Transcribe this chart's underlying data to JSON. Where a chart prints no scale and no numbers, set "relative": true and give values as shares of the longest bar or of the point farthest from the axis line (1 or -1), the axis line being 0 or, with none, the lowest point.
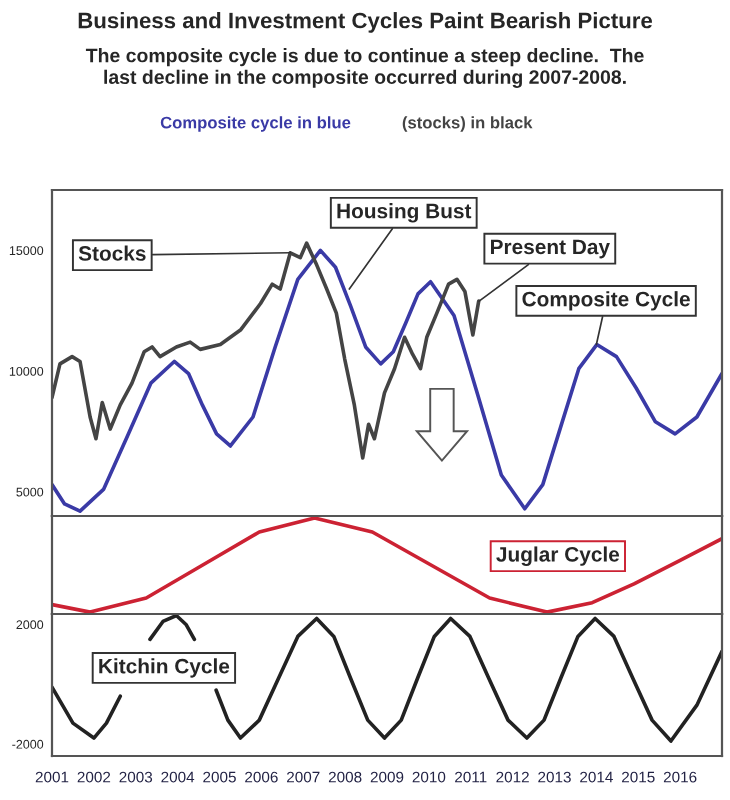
{
  "chart_data": [
    {
      "type": "line",
      "title": "Business and Investment Cycles Paint Bearish Picture",
      "subtitle": "The composite cycle is due to continue a steep decline.  The\nlast decline in the composite occurred during 2007-2008.",
      "series": [
        {
          "name": "Composite cycle in blue",
          "color": "#3a3aa6",
          "x": [
            2001.0,
            2001.3,
            2001.67,
            2002.23,
            2002.8,
            2003.36,
            2003.92,
            2004.26,
            2004.59,
            2004.93,
            2005.26,
            2005.8,
            2006.33,
            2006.87,
            2007.41,
            2007.77,
            2008.13,
            2008.49,
            2008.85,
            2009.15,
            2009.45,
            2009.74,
            2010.04,
            2010.6,
            2011.17,
            2011.73,
            2012.29,
            2012.72,
            2013.15,
            2013.58,
            2014.01,
            2014.48,
            2014.95,
            2015.41,
            2015.88,
            2016.4,
            2017.0
          ],
          "values": [
            5300,
            4500,
            4200,
            5100,
            7300,
            9500,
            10400,
            9900,
            8600,
            7400,
            6900,
            8100,
            11000,
            13800,
            15000,
            14300,
            12700,
            11000,
            10300,
            10800,
            12000,
            13200,
            13700,
            12300,
            9000,
            5700,
            4300,
            5300,
            7700,
            10100,
            11100,
            10600,
            9300,
            7900,
            7400,
            8100,
            9900
          ]
        },
        {
          "name": "(stocks) in black",
          "color": "#444444",
          "x": [
            2001.0,
            2001.19,
            2001.48,
            2001.67,
            2001.91,
            2002.05,
            2002.2,
            2002.39,
            2002.63,
            2002.91,
            2003.2,
            2003.39,
            2003.58,
            2003.97,
            2004.3,
            2004.54,
            2005.02,
            2005.5,
            2005.98,
            2006.26,
            2006.45,
            2006.69,
            2006.93,
            2007.08,
            2007.32,
            2007.56,
            2007.79,
            2007.99,
            2008.22,
            2008.42,
            2008.56,
            2008.7,
            2008.94,
            2009.18,
            2009.42,
            2009.61,
            2009.8,
            2009.95,
            2010.19,
            2010.47,
            2010.67,
            2010.86,
            2011.05,
            2011.19
          ],
          "values": [
            8900,
            10300,
            10600,
            10400,
            8100,
            7200,
            8700,
            7600,
            8600,
            9500,
            10800,
            11000,
            10600,
            11000,
            11200,
            10900,
            11100,
            11700,
            12800,
            13600,
            13400,
            14900,
            14700,
            15300,
            14400,
            13400,
            12400,
            10500,
            8600,
            6400,
            7800,
            7200,
            9100,
            10100,
            11400,
            10700,
            10100,
            11400,
            12400,
            13600,
            13800,
            13300,
            11500,
            12900
          ]
        }
      ],
      "xlim": [
        2001.0,
        2017.0
      ],
      "ylim": [
        4000,
        17500
      ],
      "yticks": [
        5000,
        10000,
        15000
      ],
      "tick_labels": "y",
      "annotations": [
        {
          "text": "Stocks",
          "x": 2006.7,
          "y": 14900
        },
        {
          "text": "Housing Bust",
          "x": 2008.1,
          "y": 13400
        },
        {
          "text": "Present Day",
          "x": 2011.2,
          "y": 12900
        },
        {
          "text": "Composite Cycle",
          "x": 2014.0,
          "y": 11100
        }
      ]
    },
    {
      "type": "line",
      "relative": true,
      "xlim": [
        2001.0,
        2017.0
      ],
      "tick_labels": false,
      "series": [
        {
          "color": "#cc2233",
          "x": [
            2001.0,
            2001.91,
            2003.25,
            2004.6,
            2005.95,
            2007.27,
            2008.65,
            2010.05,
            2011.45,
            2012.82,
            2013.9,
            2014.9,
            2016.0,
            2017.0
          ],
          "values": [
            0.08,
            0,
            0.15,
            0.5,
            0.85,
            1,
            0.85,
            0.5,
            0.15,
            0,
            0.1,
            0.3,
            0.55,
            0.78
          ]
        }
      ],
      "annotations": [
        "Juglar Cycle"
      ]
    },
    {
      "type": "line",
      "xlim": [
        2001.0,
        2017.0
      ],
      "ylim": [
        -2400,
        2350
      ],
      "yticks": [
        {
          "value": -2000,
          "label": "-2000"
        },
        2000
      ],
      "xticks": [
        2001,
        2002,
        2003,
        2004,
        2005,
        2006,
        2007,
        2008,
        2009,
        2010,
        2011,
        2012,
        2013,
        2014,
        2015,
        2016
      ],
      "series": [
        {
          "color": "#222222",
          "x": [
            2001.0,
            2001.5,
            2002.0,
            2002.3,
            2002.63,
            2003.0,
            2003.34,
            2003.65,
            2003.97,
            2004.2,
            2004.4,
            2004.7,
            2004.92,
            2005.2,
            2005.5,
            2005.95,
            2006.41,
            2006.87,
            2007.32,
            2007.73,
            2008.13,
            2008.54,
            2008.94,
            2009.34,
            2009.73,
            2010.13,
            2010.52,
            2010.98,
            2011.43,
            2011.89,
            2012.34,
            2012.75,
            2013.15,
            2013.56,
            2013.97,
            2014.42,
            2014.87,
            2015.33,
            2015.78,
            2016.4,
            2017.0
          ],
          "values": [
            -100,
            -1300,
            -1800,
            -1300,
            -400,
            null,
            1500,
            2100,
            2300,
            2000,
            1500,
            null,
            -200,
            -1200,
            -1800,
            -1200,
            200,
            1600,
            2200,
            1600,
            200,
            -1200,
            -1800,
            -1200,
            200,
            1600,
            2200,
            1600,
            200,
            -1200,
            -1800,
            -1200,
            200,
            1600,
            2200,
            1600,
            200,
            -1200,
            -1900,
            -700,
            1100
          ]
        }
      ],
      "annotations": [
        "Kitchin Cycle"
      ]
    }
  ]
}
